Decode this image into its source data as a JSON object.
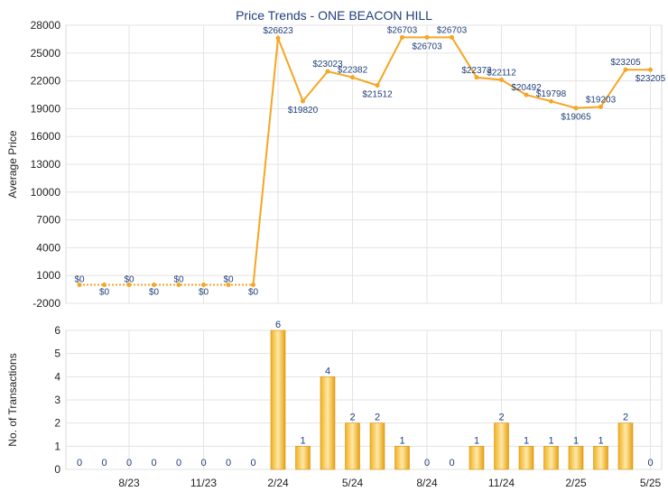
{
  "chart_data": [
    {
      "type": "line",
      "title": "Price Trends - ONE BEACON HILL",
      "ylabel": "Average Price",
      "ylim": [
        -2000,
        28000
      ],
      "yticks": [
        -2000,
        1000,
        4000,
        7000,
        10000,
        13000,
        16000,
        19000,
        22000,
        25000,
        28000
      ],
      "xtick_labels": [
        "8/23",
        "11/23",
        "2/24",
        "5/24",
        "8/24",
        "11/24",
        "2/25",
        "5/25"
      ],
      "xtick_indices": [
        2,
        5,
        8,
        11,
        14,
        17,
        20,
        23
      ],
      "grid": true,
      "color": "#f5a623",
      "series": [
        {
          "values": [
            0,
            0,
            0,
            0,
            0,
            0,
            0,
            0,
            26623,
            19820,
            23023,
            22382,
            21512,
            26703,
            26703,
            26703,
            22373,
            22112,
            20492,
            19798,
            19065,
            19203,
            23205,
            23205
          ],
          "labels": [
            "$0",
            "$0",
            "$0",
            "$0",
            "$0",
            "$0",
            "$0",
            "$0",
            "$26623",
            "$19820",
            "$23023",
            "$22382",
            "$21512",
            "$26703",
            "$26703",
            "$26703",
            "$22373",
            "$22112",
            "$20492",
            "$19798",
            "$19065",
            "$19203",
            "$23205",
            "$23205"
          ]
        }
      ]
    },
    {
      "type": "bar",
      "ylabel": "No. of Transactions",
      "ylim": [
        0,
        6
      ],
      "yticks": [
        0,
        1,
        2,
        3,
        4,
        5,
        6
      ],
      "xtick_labels": [
        "8/23",
        "11/23",
        "2/24",
        "5/24",
        "8/24",
        "11/24",
        "2/25",
        "5/25"
      ],
      "xtick_indices": [
        2,
        5,
        8,
        11,
        14,
        17,
        20,
        23
      ],
      "grid": true,
      "color": "#f5a623",
      "values": [
        0,
        0,
        0,
        0,
        0,
        0,
        0,
        0,
        6,
        1,
        4,
        2,
        2,
        1,
        0,
        0,
        1,
        2,
        1,
        1,
        1,
        1,
        2,
        0
      ]
    }
  ]
}
